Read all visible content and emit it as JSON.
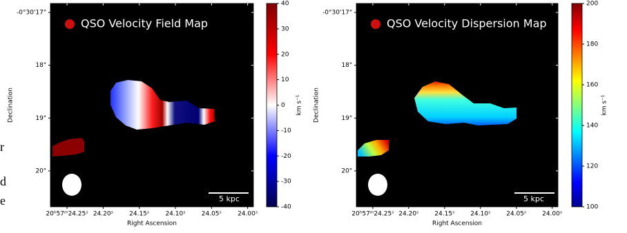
{
  "margin_text": [
    "r",
    "d",
    "e"
  ],
  "chart_data": [
    {
      "type": "image-map",
      "title": "QSO Velocity Field Map",
      "x_label": "Right Ascension",
      "y_label": "Declination",
      "xlim": [
        24.273,
        23.992
      ],
      "xticks": [
        {
          "value": 24.25,
          "label": "20ʰ57ᵐ24.25ˢ"
        },
        {
          "value": 24.2,
          "label": "24.20ˢ"
        },
        {
          "value": 24.15,
          "label": "24.15ˢ"
        },
        {
          "value": 24.1,
          "label": "24.10ˢ"
        },
        {
          "value": 24.05,
          "label": "24.05ˢ"
        },
        {
          "value": 24.0,
          "label": "24.00ˢ"
        }
      ],
      "ylim": [
        16.83,
        20.68
      ],
      "yticks": [
        {
          "value": 17,
          "label": "-0°30'17\""
        },
        {
          "value": 18,
          "label": "18\""
        },
        {
          "value": 19,
          "label": "19\""
        },
        {
          "value": 20,
          "label": "20\""
        }
      ],
      "colorbar_label": "km s⁻¹",
      "clim": [
        -40,
        40
      ],
      "cticks": [
        -40,
        -30,
        -20,
        -10,
        0,
        10,
        20,
        30,
        40
      ],
      "colormap": "seismic",
      "scale_bar": "5 kpc"
    },
    {
      "type": "image-map",
      "title": "QSO Velocity Dispersion Map",
      "x_label": "Right Ascension",
      "y_label": "Declination",
      "xlim": [
        24.273,
        23.992
      ],
      "xticks": [
        {
          "value": 24.25,
          "label": "20ʰ57ᵐ24.25ˢ"
        },
        {
          "value": 24.2,
          "label": "24.20ˢ"
        },
        {
          "value": 24.15,
          "label": "24.15ˢ"
        },
        {
          "value": 24.1,
          "label": "24.10ˢ"
        },
        {
          "value": 24.05,
          "label": "24.05ˢ"
        },
        {
          "value": 24.0,
          "label": "24.00ˢ"
        }
      ],
      "ylim": [
        16.83,
        20.68
      ],
      "yticks": [
        {
          "value": 17,
          "label": "-0°30'17\""
        },
        {
          "value": 18,
          "label": "18\""
        },
        {
          "value": 19,
          "label": "19\""
        },
        {
          "value": 20,
          "label": "20\""
        }
      ],
      "colorbar_label": "km s⁻¹",
      "clim": [
        100,
        200
      ],
      "cticks": [
        100,
        120,
        140,
        160,
        180,
        200
      ],
      "colormap": "jet",
      "scale_bar": "5 kpc"
    }
  ]
}
